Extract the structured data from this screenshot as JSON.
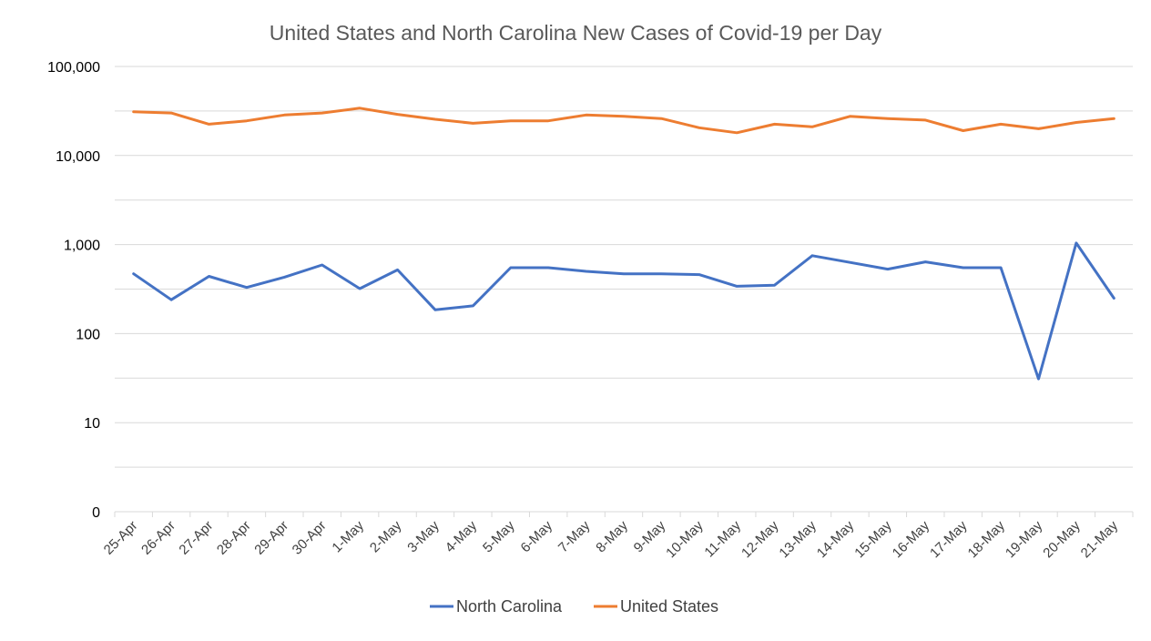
{
  "chart_data": {
    "type": "line",
    "title": "United States and North Carolina New Cases of Covid-19 per Day",
    "xlabel": "",
    "ylabel": "",
    "yscale": "log",
    "ylim": [
      1,
      100000
    ],
    "y_ticks": [
      {
        "value": 1,
        "label": "0"
      },
      {
        "value": 10,
        "label": "10"
      },
      {
        "value": 100,
        "label": "100"
      },
      {
        "value": 1000,
        "label": "1,000"
      },
      {
        "value": 10000,
        "label": "10,000"
      },
      {
        "value": 100000,
        "label": "100,000"
      }
    ],
    "grid": true,
    "legend_position": "bottom",
    "categories": [
      "25-Apr",
      "26-Apr",
      "27-Apr",
      "28-Apr",
      "29-Apr",
      "30-Apr",
      "1-May",
      "2-May",
      "3-May",
      "4-May",
      "5-May",
      "6-May",
      "7-May",
      "8-May",
      "9-May",
      "10-May",
      "11-May",
      "12-May",
      "13-May",
      "14-May",
      "15-May",
      "16-May",
      "17-May",
      "18-May",
      "19-May",
      "20-May",
      "21-May"
    ],
    "series": [
      {
        "name": "North Carolina",
        "color": "#4472C4",
        "values": [
          470,
          240,
          440,
          330,
          430,
          590,
          320,
          520,
          185,
          205,
          550,
          550,
          500,
          470,
          470,
          460,
          340,
          350,
          750,
          630,
          530,
          640,
          550,
          550,
          31,
          1040,
          250
        ]
      },
      {
        "name": "United States",
        "color": "#ED7D31",
        "values": [
          31000,
          30000,
          22500,
          24500,
          28500,
          30000,
          34000,
          29000,
          25500,
          23000,
          24500,
          24500,
          28500,
          27500,
          26000,
          20500,
          18000,
          22500,
          21000,
          27500,
          26000,
          25000,
          19000,
          22500,
          20000,
          23500,
          26000
        ]
      }
    ]
  }
}
